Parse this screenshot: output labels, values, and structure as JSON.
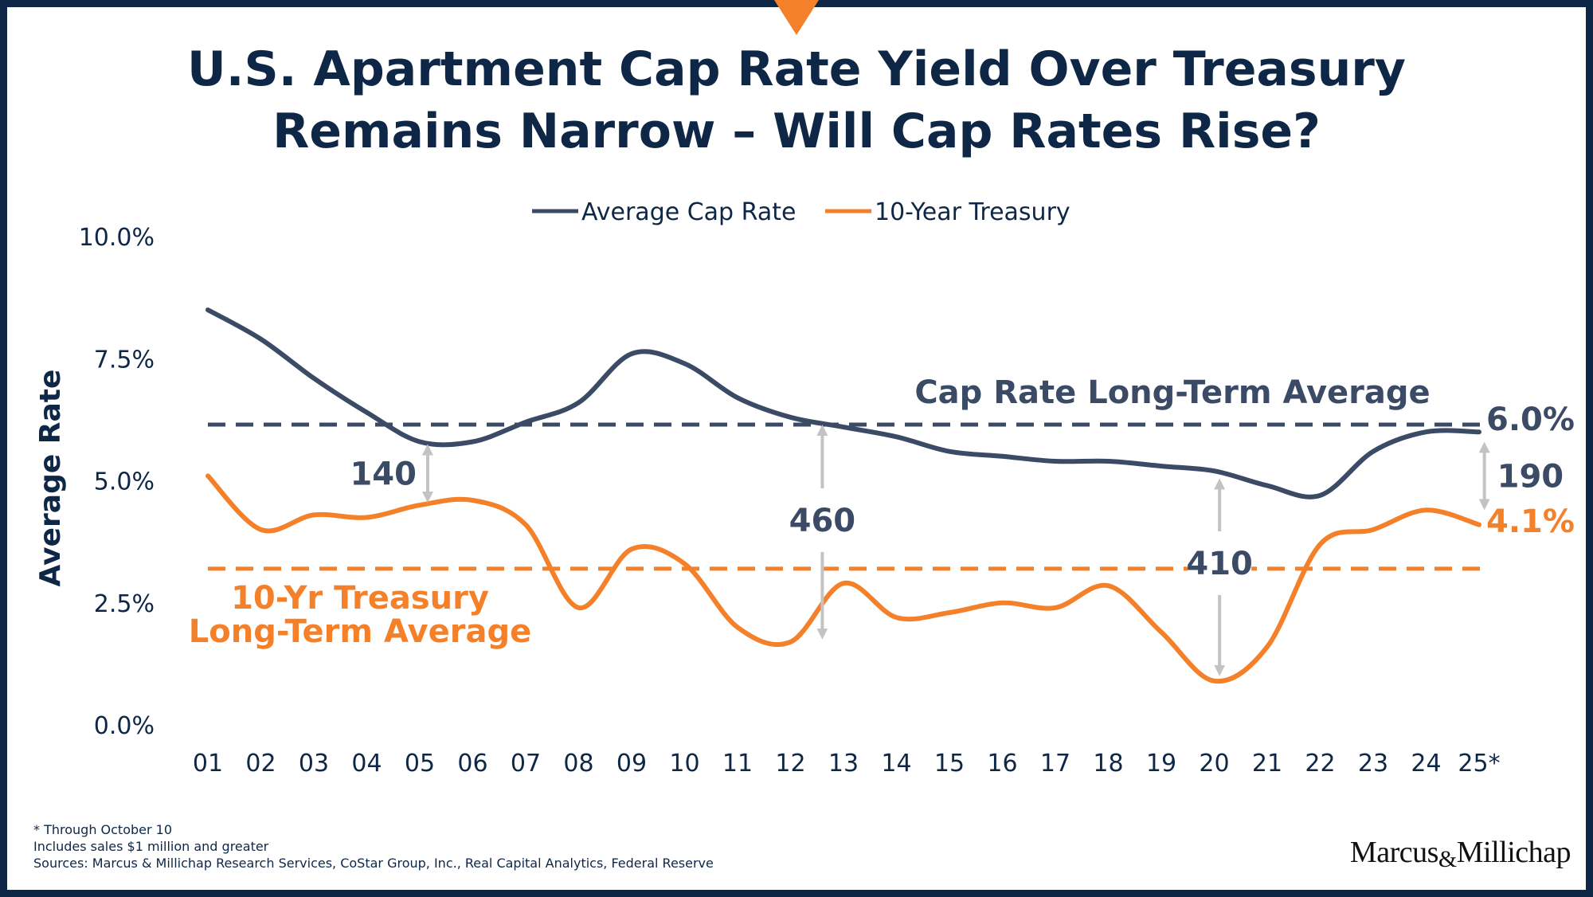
{
  "title_lines": [
    "U.S. Apartment Cap Rate Yield Over Treasury",
    "Remains Narrow – Will Cap Rates Rise?"
  ],
  "colors": {
    "navy": "#3b4a65",
    "orange": "#f4802a",
    "gray_arrow": "#c3c3c3",
    "text_navy": "#0f2747",
    "frame": "#0f2747"
  },
  "chart_data": {
    "type": "line",
    "title": "U.S. Apartment Cap Rate Yield Over Treasury Remains Narrow – Will Cap Rates Rise?",
    "ylabel": "Average Rate",
    "xlabel": "",
    "ylim": [
      0,
      10
    ],
    "y_ticks": [
      0,
      2.5,
      5,
      7.5,
      10
    ],
    "y_tick_labels": [
      "0.0%",
      "2.5%",
      "5.0%",
      "7.5%",
      "10.0%"
    ],
    "x_tick_labels": [
      "01",
      "02",
      "03",
      "04",
      "05",
      "06",
      "07",
      "08",
      "09",
      "10",
      "11",
      "12",
      "13",
      "14",
      "15",
      "16",
      "17",
      "18",
      "19",
      "20",
      "21",
      "22",
      "23",
      "24",
      "25*"
    ],
    "grid": false,
    "legend_position": "top-center",
    "series": [
      {
        "name": "Average Cap Rate",
        "color": "#3b4a65",
        "points": [
          [
            1,
            8.5
          ],
          [
            2,
            7.9
          ],
          [
            3,
            7.1
          ],
          [
            4,
            6.4
          ],
          [
            5,
            5.8
          ],
          [
            6,
            5.8
          ],
          [
            7,
            6.2
          ],
          [
            8,
            6.6
          ],
          [
            9,
            7.6
          ],
          [
            10,
            7.4
          ],
          [
            11,
            6.7
          ],
          [
            12,
            6.3
          ],
          [
            13,
            6.1
          ],
          [
            14,
            5.9
          ],
          [
            15,
            5.6
          ],
          [
            16,
            5.5
          ],
          [
            17,
            5.4
          ],
          [
            18,
            5.4
          ],
          [
            19,
            5.3
          ],
          [
            20,
            5.2
          ],
          [
            21,
            4.9
          ],
          [
            22,
            4.7
          ],
          [
            23,
            5.6
          ],
          [
            24,
            6.0
          ],
          [
            25,
            6.0
          ]
        ]
      },
      {
        "name": "10-Year Treasury",
        "color": "#f4802a",
        "points": [
          [
            1,
            5.1
          ],
          [
            2,
            4.0
          ],
          [
            3,
            4.3
          ],
          [
            4,
            4.25
          ],
          [
            5,
            4.5
          ],
          [
            6,
            4.6
          ],
          [
            7,
            4.1
          ],
          [
            8,
            2.4
          ],
          [
            9,
            3.6
          ],
          [
            10,
            3.3
          ],
          [
            11,
            2.0
          ],
          [
            12,
            1.7
          ],
          [
            13,
            2.9
          ],
          [
            14,
            2.2
          ],
          [
            15,
            2.3
          ],
          [
            16,
            2.5
          ],
          [
            17,
            2.4
          ],
          [
            18,
            2.85
          ],
          [
            19,
            1.9
          ],
          [
            20,
            0.9
          ],
          [
            21,
            1.6
          ],
          [
            22,
            3.7
          ],
          [
            23,
            4.0
          ],
          [
            24,
            4.4
          ],
          [
            25,
            4.1
          ]
        ]
      }
    ],
    "reference_lines": [
      {
        "name": "Cap Rate Long-Term Average",
        "value": 6.15,
        "color": "#3b4a65",
        "style": "dashed"
      },
      {
        "name": "10-Yr Treasury Long-Term Average",
        "value": 3.2,
        "color": "#f4802a",
        "style": "dashed"
      }
    ],
    "annotations": {
      "cap_avg_label": "Cap Rate Long-Term Average",
      "treasury_avg_label_line1": "10-Yr Treasury",
      "treasury_avg_label_line2": "Long-Term Average",
      "cap_end_value": "6.0%",
      "treasury_end_value": "4.1%",
      "spreads": [
        {
          "label": "140",
          "x": 5.15,
          "top": 5.8,
          "bottom": 4.5
        },
        {
          "label": "460",
          "x": 12.6,
          "top": 6.2,
          "bottom": 1.7
        },
        {
          "label": "410",
          "x": 20.1,
          "top": 5.1,
          "bottom": 0.95
        },
        {
          "label": "190",
          "x": 25.1,
          "top": 5.85,
          "bottom": 4.35
        }
      ]
    }
  },
  "footnotes": [
    "* Through October 10",
    "Includes sales $1 million and greater",
    "Sources: Marcus & Millichap Research Services, CoStar Group, Inc., Real Capital Analytics, Federal Reserve"
  ],
  "logo": {
    "left": "Marcus",
    "amp": "&",
    "right": "Millichap"
  }
}
